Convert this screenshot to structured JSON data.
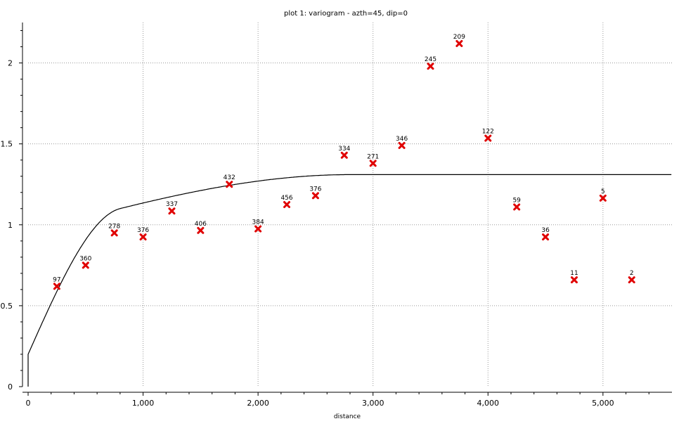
{
  "chart_data": {
    "type": "scatter",
    "title": "plot 1:  variogram - azth=45, dip=0",
    "xlabel": "distance",
    "ylabel": "",
    "xlim": [
      0,
      5600
    ],
    "ylim": [
      0,
      2.25
    ],
    "xticks": [
      0,
      1000,
      2000,
      3000,
      4000,
      5000
    ],
    "xtick_labels": [
      "0",
      "1,000",
      "2,000",
      "3,000",
      "4,000",
      "5,000"
    ],
    "yticks": [
      0,
      0.5,
      1,
      1.5,
      2
    ],
    "ytick_labels": [
      "0",
      "0.5",
      "1",
      "1.5",
      "2"
    ],
    "grid": true,
    "marker_color": "#e00000",
    "points": [
      {
        "x": 250,
        "y": 0.62,
        "label": "97"
      },
      {
        "x": 500,
        "y": 0.75,
        "label": "360"
      },
      {
        "x": 750,
        "y": 0.95,
        "label": "278"
      },
      {
        "x": 1000,
        "y": 0.925,
        "label": "376"
      },
      {
        "x": 1250,
        "y": 1.085,
        "label": "337"
      },
      {
        "x": 1500,
        "y": 0.965,
        "label": "406"
      },
      {
        "x": 1750,
        "y": 1.25,
        "label": "432"
      },
      {
        "x": 2000,
        "y": 0.975,
        "label": "384"
      },
      {
        "x": 2250,
        "y": 1.125,
        "label": "456"
      },
      {
        "x": 2500,
        "y": 1.18,
        "label": "376"
      },
      {
        "x": 2750,
        "y": 1.43,
        "label": "334"
      },
      {
        "x": 3000,
        "y": 1.38,
        "label": "271"
      },
      {
        "x": 3250,
        "y": 1.49,
        "label": "346"
      },
      {
        "x": 3500,
        "y": 1.98,
        "label": "245"
      },
      {
        "x": 3750,
        "y": 2.12,
        "label": "209"
      },
      {
        "x": 4000,
        "y": 1.535,
        "label": "122"
      },
      {
        "x": 4250,
        "y": 1.11,
        "label": "59"
      },
      {
        "x": 4500,
        "y": 0.925,
        "label": "36"
      },
      {
        "x": 4750,
        "y": 0.66,
        "label": "11"
      },
      {
        "x": 5000,
        "y": 1.165,
        "label": "5"
      },
      {
        "x": 5250,
        "y": 0.66,
        "label": "2"
      }
    ],
    "model": {
      "type": "spherical",
      "nugget": 0.2,
      "components": [
        {
          "sill": 0.75,
          "range": 800
        },
        {
          "sill": 0.36,
          "range": 2800
        }
      ],
      "x_end": 5600
    }
  }
}
